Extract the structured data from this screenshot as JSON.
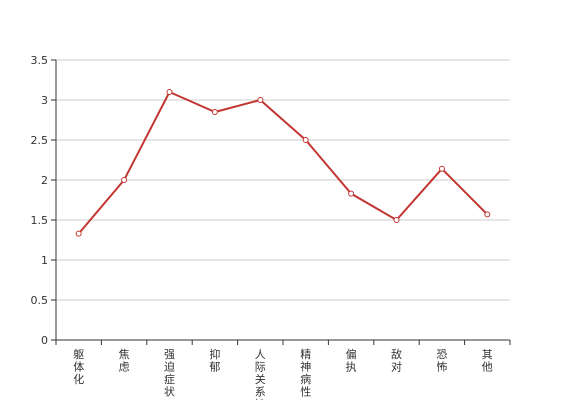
{
  "chart_data": {
    "type": "line",
    "title": "",
    "xlabel": "",
    "ylabel": "",
    "ylim": [
      0,
      3.5
    ],
    "y_ticks": [
      "0",
      "0.5",
      "1",
      "1.5",
      "2",
      "2.5",
      "3",
      "3.5"
    ],
    "categories": [
      "躯体化",
      "焦虑",
      "强迫症状",
      "抑郁",
      "人际关系敏感",
      "精神病性",
      "偏执",
      "敌对",
      "恐怖",
      "其他"
    ],
    "series": [
      {
        "values": [
          1.33,
          2.0,
          3.1,
          2.85,
          3.0,
          2.5,
          1.83,
          1.5,
          2.14,
          1.57
        ]
      }
    ],
    "grid": true,
    "legend": "none",
    "colors": {
      "line": "#c23531",
      "grid": "#cccccc",
      "axis": "#333333",
      "text": "#333333",
      "marker_fill": "#ffffff"
    }
  }
}
